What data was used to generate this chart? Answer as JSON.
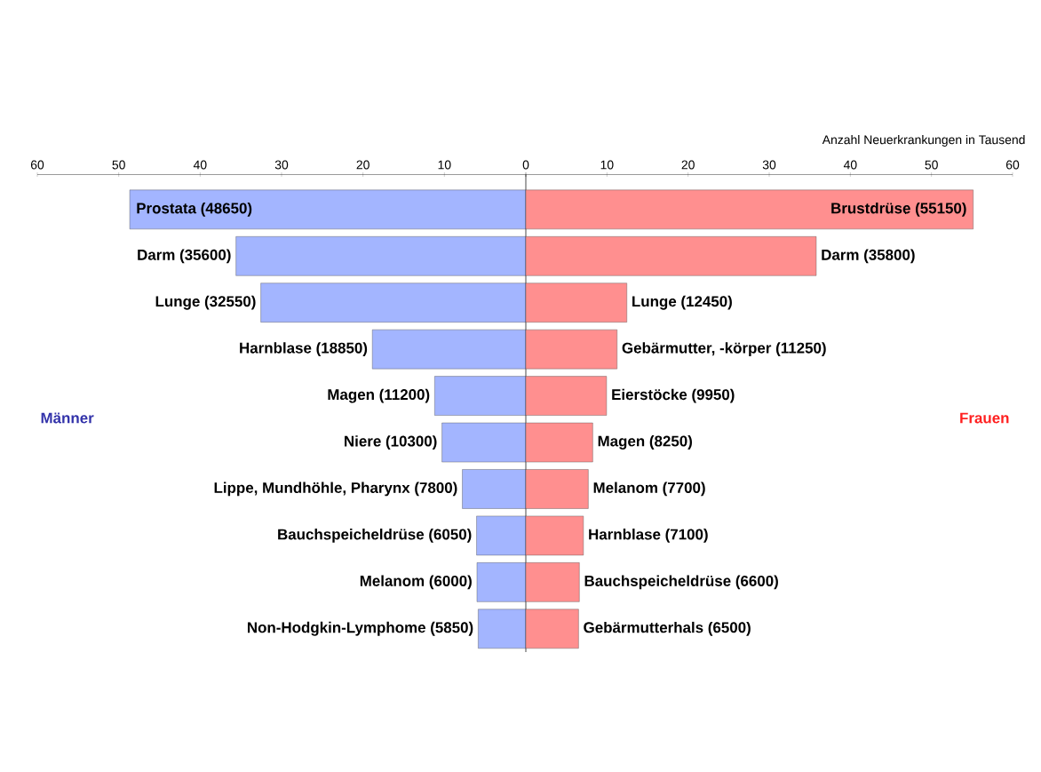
{
  "chart_data": [
    {
      "type": "bar",
      "orientation": "horizontal",
      "title": "Männer",
      "categories": [
        "Prostata (48650)",
        "Darm (35600)",
        "Lunge (32550)",
        "Harnblase (18850)",
        "Magen (11200)",
        "Niere (10300)",
        "Lippe, Mundhöhle, Pharynx (7800)",
        "Bauchspeicheldrüse (6050)",
        "Melanom (6000)",
        "Non-Hodgkin-Lymphome (5850)"
      ],
      "values": [
        48.65,
        35.6,
        32.55,
        18.85,
        11.2,
        10.3,
        7.8,
        6.05,
        6.0,
        5.85
      ],
      "color": "#a3b5ff",
      "xlim": [
        60,
        0
      ],
      "xticks": [
        60,
        50,
        40,
        30,
        20,
        10,
        {
          "value": 0,
          "label": null
        }
      ]
    },
    {
      "type": "bar",
      "orientation": "horizontal",
      "title": "Frauen",
      "xlabel": "Anzahl Neuerkrankungen in Tausend",
      "categories": [
        "Brustdrüse (55150)",
        "Darm (35800)",
        "Lunge (12450)",
        "Gebärmutter, -körper (11250)",
        "Eierstöcke (9950)",
        "Magen (8250)",
        "Melanom (7700)",
        "Harnblase (7100)",
        "Bauchspeicheldrüse (6600)",
        "Gebärmutterhals (6500)"
      ],
      "values": [
        55.15,
        35.8,
        12.45,
        11.25,
        9.95,
        8.25,
        7.7,
        7.1,
        6.6,
        6.5
      ],
      "color": "#ff8f8f",
      "xlim": [
        0,
        60
      ],
      "xticks": [
        0,
        10,
        20,
        30,
        40,
        50,
        60
      ]
    }
  ]
}
